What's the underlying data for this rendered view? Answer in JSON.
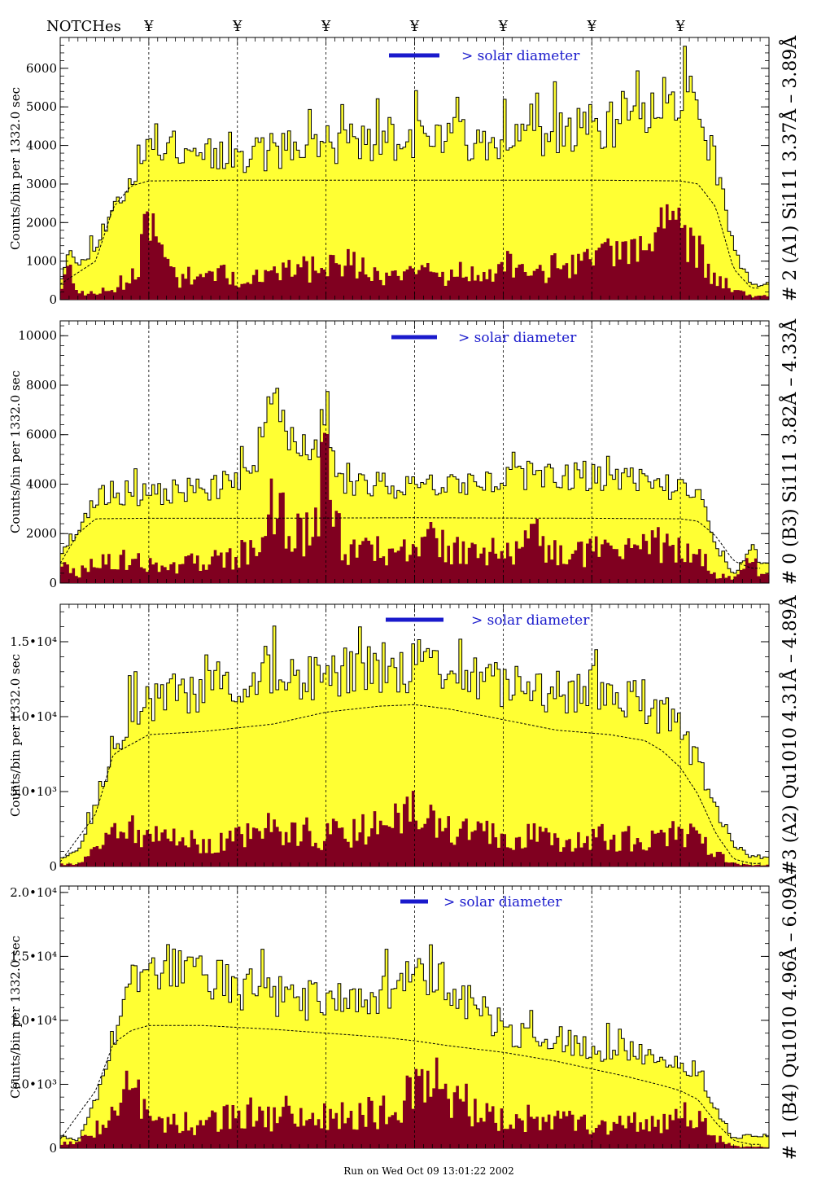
{
  "header": {
    "notches_label": "NOTCHes",
    "notch_symbol": "¥",
    "notch_positions_x": [
      5,
      10,
      15,
      20,
      25,
      30,
      35
    ]
  },
  "footer": {
    "run_text": "Run on Wed Oct 09 13:01:22 2002"
  },
  "colors": {
    "total_fill": "#ffff33",
    "flare_fill": "#800020",
    "legend_bar": "#1a1acc",
    "legend_text": "#1a1acc",
    "model_line": "#000000"
  },
  "chart_data": [
    {
      "type": "area",
      "panel_title": "# 2 (A1) Si111  3.37Å – 3.89Å",
      "ylabel": "Counts/bin per   1332.0 sec",
      "yticks": [
        0,
        1000,
        2000,
        3000,
        4000,
        5000,
        6000
      ],
      "ytick_labels": [
        "0",
        "1000",
        "2000",
        "3000",
        "4000",
        "5000",
        "6000"
      ],
      "ylim": [
        0,
        6800
      ],
      "legend_label": "> solar diameter",
      "total_profile": [
        [
          0,
          400
        ],
        [
          0.5,
          1500
        ],
        [
          1,
          800
        ],
        [
          2,
          1500
        ],
        [
          3,
          2300
        ],
        [
          4,
          3200
        ],
        [
          5,
          4000
        ],
        [
          6,
          4100
        ],
        [
          8,
          3900
        ],
        [
          10,
          3800
        ],
        [
          13,
          3900
        ],
        [
          15,
          4000
        ],
        [
          17,
          4100
        ],
        [
          20,
          4200
        ],
        [
          23,
          4200
        ],
        [
          25,
          4200
        ],
        [
          27,
          4300
        ],
        [
          30,
          4400
        ],
        [
          33,
          4700
        ],
        [
          34,
          5300
        ],
        [
          35,
          5400
        ],
        [
          36,
          5000
        ],
        [
          37,
          3500
        ],
        [
          38,
          1300
        ],
        [
          39,
          400
        ]
      ],
      "flare_profile": [
        [
          0,
          300
        ],
        [
          0.5,
          900
        ],
        [
          1,
          200
        ],
        [
          2,
          200
        ],
        [
          3,
          300
        ],
        [
          4,
          700
        ],
        [
          5,
          2000
        ],
        [
          5.8,
          1300
        ],
        [
          6.5,
          700
        ],
        [
          8,
          650
        ],
        [
          10,
          700
        ],
        [
          12,
          750
        ],
        [
          13,
          800
        ],
        [
          15,
          900
        ],
        [
          16,
          1100
        ],
        [
          17,
          900
        ],
        [
          18,
          700
        ],
        [
          20,
          700
        ],
        [
          22,
          750
        ],
        [
          24,
          800
        ],
        [
          25,
          1000
        ],
        [
          26,
          850
        ],
        [
          28,
          900
        ],
        [
          30,
          1000
        ],
        [
          31,
          1200
        ],
        [
          32,
          1200
        ],
        [
          33,
          1500
        ],
        [
          34,
          1800
        ],
        [
          35,
          2000
        ],
        [
          36,
          1400
        ],
        [
          37,
          600
        ],
        [
          38,
          300
        ],
        [
          39,
          100
        ]
      ],
      "model_profile": [
        [
          0,
          400
        ],
        [
          2,
          1000
        ],
        [
          3,
          2400
        ],
        [
          4,
          2950
        ],
        [
          5,
          3080
        ],
        [
          10,
          3100
        ],
        [
          20,
          3100
        ],
        [
          30,
          3100
        ],
        [
          35,
          3080
        ],
        [
          36,
          3000
        ],
        [
          37,
          2400
        ],
        [
          38,
          800
        ],
        [
          39,
          300
        ]
      ],
      "seed": 11
    },
    {
      "type": "area",
      "panel_title": "# 0 (B3) Si111  3.82Å – 4.33Å",
      "ylabel": "Counts/bin per   1332.0 sec",
      "yticks": [
        0,
        2000,
        4000,
        6000,
        8000,
        10000
      ],
      "ytick_labels": [
        "0",
        "2000",
        "4000",
        "6000",
        "8000",
        "10000"
      ],
      "ylim": [
        0,
        10600
      ],
      "legend_label": "> solar diameter",
      "total_profile": [
        [
          0,
          1200
        ],
        [
          1,
          2200
        ],
        [
          2,
          3300
        ],
        [
          3,
          3700
        ],
        [
          4,
          3600
        ],
        [
          5,
          3500
        ],
        [
          6,
          3700
        ],
        [
          8,
          3800
        ],
        [
          9.5,
          4000
        ],
        [
          11,
          4500
        ],
        [
          11.8,
          8500
        ],
        [
          12.5,
          7000
        ],
        [
          13.5,
          4500
        ],
        [
          14.5,
          5500
        ],
        [
          15,
          7500
        ],
        [
          15.5,
          4500
        ],
        [
          16,
          4000
        ],
        [
          18,
          4000
        ],
        [
          20,
          3900
        ],
        [
          22,
          4200
        ],
        [
          24,
          4100
        ],
        [
          26,
          4300
        ],
        [
          28,
          4400
        ],
        [
          30,
          4300
        ],
        [
          32,
          4200
        ],
        [
          34,
          4000
        ],
        [
          36,
          3600
        ],
        [
          37,
          1500
        ],
        [
          38,
          300
        ],
        [
          39,
          1500
        ],
        [
          39.5,
          800
        ]
      ],
      "flare_profile": [
        [
          0,
          900
        ],
        [
          1,
          400
        ],
        [
          2,
          1200
        ],
        [
          4,
          1000
        ],
        [
          5,
          800
        ],
        [
          6,
          800
        ],
        [
          8,
          1000
        ],
        [
          10,
          1200
        ],
        [
          11,
          1600
        ],
        [
          11.8,
          4500
        ],
        [
          12.5,
          3200
        ],
        [
          13.5,
          2000
        ],
        [
          14.5,
          3000
        ],
        [
          15,
          6500
        ],
        [
          15.6,
          3000
        ],
        [
          16,
          1500
        ],
        [
          18,
          1500
        ],
        [
          20,
          1400
        ],
        [
          21,
          2200
        ],
        [
          22,
          1500
        ],
        [
          24,
          1300
        ],
        [
          26,
          1600
        ],
        [
          27,
          2000
        ],
        [
          28,
          1500
        ],
        [
          30,
          1400
        ],
        [
          32,
          1600
        ],
        [
          34,
          1700
        ],
        [
          35,
          1900
        ],
        [
          36,
          1300
        ],
        [
          37,
          400
        ],
        [
          38,
          200
        ],
        [
          39,
          1300
        ],
        [
          39.5,
          300
        ]
      ],
      "model_profile": [
        [
          0,
          800
        ],
        [
          1,
          2000
        ],
        [
          2,
          2600
        ],
        [
          5,
          2620
        ],
        [
          10,
          2620
        ],
        [
          20,
          2640
        ],
        [
          30,
          2620
        ],
        [
          35,
          2600
        ],
        [
          36,
          2500
        ],
        [
          37,
          1900
        ],
        [
          38,
          900
        ],
        [
          39,
          600
        ]
      ],
      "seed": 23
    },
    {
      "type": "area",
      "panel_title": "#3 (A2) Qu1010  4.31Å – 4.89Å",
      "ylabel": "Counts/bin per   1332.0 sec",
      "yticks": [
        0,
        5000,
        10000,
        15000
      ],
      "ytick_labels": [
        "0",
        "5.0•10³",
        "1.0•10⁴",
        "1.5•10⁴"
      ],
      "ylim": [
        0,
        17500
      ],
      "legend_label": "> solar diameter",
      "total_profile": [
        [
          0,
          600
        ],
        [
          1,
          1000
        ],
        [
          2,
          4000
        ],
        [
          3,
          8000
        ],
        [
          4,
          10000
        ],
        [
          5,
          11000
        ],
        [
          7,
          11600
        ],
        [
          9,
          12000
        ],
        [
          11,
          12400
        ],
        [
          13,
          12600
        ],
        [
          15,
          13000
        ],
        [
          17,
          13000
        ],
        [
          19,
          13200
        ],
        [
          20,
          13600
        ],
        [
          21,
          13200
        ],
        [
          23,
          12600
        ],
        [
          25,
          12000
        ],
        [
          27,
          11700
        ],
        [
          29,
          11600
        ],
        [
          31,
          11600
        ],
        [
          32,
          11400
        ],
        [
          33,
          10600
        ],
        [
          34,
          10000
        ],
        [
          35,
          9000
        ],
        [
          36,
          7000
        ],
        [
          37,
          4000
        ],
        [
          38,
          1500
        ],
        [
          39,
          600
        ]
      ],
      "flare_profile": [
        [
          0,
          200
        ],
        [
          1,
          200
        ],
        [
          2,
          1300
        ],
        [
          3,
          2400
        ],
        [
          4,
          2700
        ],
        [
          5,
          2400
        ],
        [
          6,
          1900
        ],
        [
          8,
          1800
        ],
        [
          10,
          2000
        ],
        [
          11,
          2400
        ],
        [
          12,
          2900
        ],
        [
          13,
          2600
        ],
        [
          15,
          2300
        ],
        [
          16,
          2500
        ],
        [
          18,
          2800
        ],
        [
          19,
          3200
        ],
        [
          20,
          4200
        ],
        [
          21,
          3000
        ],
        [
          22,
          2500
        ],
        [
          24,
          2300
        ],
        [
          26,
          2400
        ],
        [
          27,
          2200
        ],
        [
          29,
          2100
        ],
        [
          30,
          2300
        ],
        [
          31,
          2200
        ],
        [
          33,
          2100
        ],
        [
          35,
          2300
        ],
        [
          36,
          2000
        ],
        [
          37,
          1000
        ],
        [
          38,
          200
        ],
        [
          39,
          100
        ]
      ],
      "model_profile": [
        [
          0,
          300
        ],
        [
          2,
          3500
        ],
        [
          3,
          7500
        ],
        [
          5,
          8800
        ],
        [
          8,
          9000
        ],
        [
          12,
          9500
        ],
        [
          15,
          10300
        ],
        [
          18,
          10700
        ],
        [
          20,
          10800
        ],
        [
          22,
          10500
        ],
        [
          25,
          9800
        ],
        [
          28,
          9100
        ],
        [
          31,
          8800
        ],
        [
          33,
          8400
        ],
        [
          34,
          7700
        ],
        [
          35,
          6600
        ],
        [
          36,
          4800
        ],
        [
          37,
          2200
        ],
        [
          38,
          500
        ],
        [
          39,
          200
        ]
      ],
      "seed": 37
    },
    {
      "type": "area",
      "panel_title": "# 1 (B4) Qu1010 4.96Å – 6.09Å",
      "ylabel": "Counts/bin per   1332.0 sec",
      "yticks": [
        0,
        5000,
        10000,
        15000,
        20000
      ],
      "ytick_labels": [
        "0",
        "5.0•10³",
        "1.0•10⁴",
        "1.5•10⁴",
        "2.0•10⁴"
      ],
      "ylim": [
        0,
        20500
      ],
      "legend_label": "> solar diameter",
      "total_profile": [
        [
          0,
          1000
        ],
        [
          1,
          600
        ],
        [
          2,
          4000
        ],
        [
          3,
          9000
        ],
        [
          4,
          12500
        ],
        [
          5,
          13500
        ],
        [
          6,
          14500
        ],
        [
          8,
          13500
        ],
        [
          10,
          12500
        ],
        [
          12,
          12000
        ],
        [
          14,
          11500
        ],
        [
          16,
          11500
        ],
        [
          18,
          11800
        ],
        [
          19,
          12500
        ],
        [
          20,
          13500
        ],
        [
          21,
          14000
        ],
        [
          22,
          12000
        ],
        [
          24,
          10000
        ],
        [
          26,
          9000
        ],
        [
          28,
          8500
        ],
        [
          30,
          8000
        ],
        [
          32,
          7500
        ],
        [
          34,
          7000
        ],
        [
          36,
          6000
        ],
        [
          37,
          3000
        ],
        [
          38,
          800
        ],
        [
          39,
          1000
        ]
      ],
      "flare_profile": [
        [
          0,
          500
        ],
        [
          1,
          400
        ],
        [
          2,
          1800
        ],
        [
          3,
          3500
        ],
        [
          4,
          5000
        ],
        [
          5,
          4000
        ],
        [
          6,
          2200
        ],
        [
          8,
          2200
        ],
        [
          10,
          2700
        ],
        [
          11,
          3200
        ],
        [
          12,
          2800
        ],
        [
          13,
          3300
        ],
        [
          14,
          3000
        ],
        [
          16,
          2800
        ],
        [
          18,
          3200
        ],
        [
          19,
          4000
        ],
        [
          20,
          5500
        ],
        [
          21,
          6500
        ],
        [
          22,
          4500
        ],
        [
          24,
          3000
        ],
        [
          26,
          2600
        ],
        [
          28,
          2400
        ],
        [
          30,
          2300
        ],
        [
          32,
          2200
        ],
        [
          34,
          2100
        ],
        [
          35,
          2800
        ],
        [
          36,
          2400
        ],
        [
          37,
          900
        ],
        [
          38,
          200
        ],
        [
          39,
          100
        ]
      ],
      "model_profile": [
        [
          0,
          700
        ],
        [
          2,
          4500
        ],
        [
          3,
          8200
        ],
        [
          4,
          9200
        ],
        [
          5,
          9600
        ],
        [
          8,
          9600
        ],
        [
          12,
          9300
        ],
        [
          15,
          9000
        ],
        [
          18,
          8700
        ],
        [
          20,
          8400
        ],
        [
          22,
          8000
        ],
        [
          25,
          7500
        ],
        [
          28,
          6800
        ],
        [
          30,
          6200
        ],
        [
          32,
          5600
        ],
        [
          34,
          4900
        ],
        [
          35,
          4500
        ],
        [
          36,
          3800
        ],
        [
          37,
          2000
        ],
        [
          38,
          600
        ],
        [
          39,
          300
        ]
      ],
      "seed": 53
    }
  ]
}
